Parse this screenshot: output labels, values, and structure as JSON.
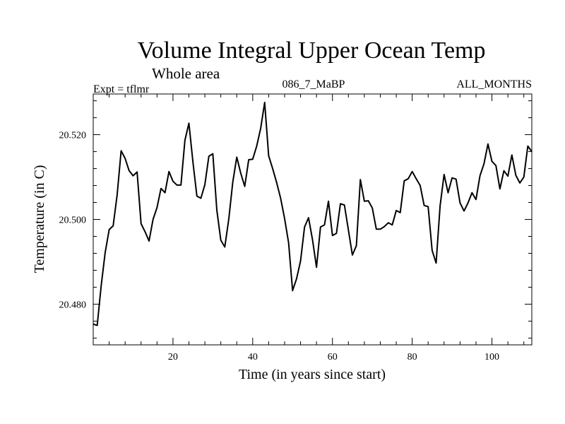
{
  "chart_data": {
    "type": "line",
    "title": "Volume Integral Upper Ocean Temp",
    "subtitle": "Whole area",
    "expt_label": "Expt = tflmr",
    "run_label": "086_7_MaBP",
    "months_label": "ALL_MONTHS",
    "xlabel": "Time (in years since start)",
    "ylabel": "Temperature (in C)",
    "xlim": [
      0,
      110
    ],
    "ylim": [
      0.4704,
      0.5296
    ],
    "ylim_display": [
      "20.4704",
      "20.5296"
    ],
    "y_offset": 20,
    "x_major_ticks": [
      20,
      40,
      60,
      80,
      100
    ],
    "x_major_labels": [
      "20",
      "40",
      "60",
      "80",
      "100"
    ],
    "x_minor_step": 4,
    "y_major_ticks": [
      0.48,
      0.5,
      0.52
    ],
    "y_major_labels": [
      "20.480",
      "20.500",
      "20.520"
    ],
    "y_minor_step": 0.004,
    "series": [
      {
        "name": "Temperature",
        "x": [
          0,
          1,
          2,
          3,
          4,
          5,
          6,
          7,
          8,
          9,
          10,
          11,
          12,
          13,
          14,
          15,
          16,
          17,
          18,
          19,
          20,
          21,
          22,
          23,
          24,
          25,
          26,
          27,
          28,
          29,
          30,
          31,
          32,
          33,
          34,
          35,
          36,
          37,
          38,
          39,
          40,
          41,
          42,
          43,
          44,
          45,
          46,
          47,
          48,
          49,
          50,
          51,
          52,
          53,
          54,
          55,
          56,
          57,
          58,
          59,
          60,
          61,
          62,
          63,
          64,
          65,
          66,
          67,
          68,
          69,
          70,
          71,
          72,
          73,
          74,
          75,
          76,
          77,
          78,
          79,
          80,
          81,
          82,
          83,
          84,
          85,
          86,
          87,
          88,
          89,
          90,
          91,
          92,
          93,
          94,
          95,
          96,
          97,
          98,
          99,
          100,
          101,
          102,
          103,
          104,
          105,
          106,
          107,
          108,
          109,
          110
        ],
        "y": [
          0.4753,
          0.475,
          0.4844,
          0.4922,
          0.4976,
          0.4985,
          0.5058,
          0.5162,
          0.5144,
          0.5115,
          0.5103,
          0.5112,
          0.499,
          0.4971,
          0.4949,
          0.5,
          0.5028,
          0.5073,
          0.5063,
          0.5113,
          0.509,
          0.5081,
          0.5081,
          0.5187,
          0.5227,
          0.5136,
          0.5055,
          0.505,
          0.5082,
          0.5149,
          0.5155,
          0.5022,
          0.4951,
          0.4935,
          0.5001,
          0.5088,
          0.5147,
          0.5109,
          0.5078,
          0.5141,
          0.5142,
          0.5173,
          0.5215,
          0.5276,
          0.515,
          0.512,
          0.5087,
          0.505,
          0.5002,
          0.4945,
          0.4832,
          0.486,
          0.4902,
          0.4982,
          0.5004,
          0.4952,
          0.4887,
          0.4982,
          0.4987,
          0.5043,
          0.4962,
          0.4967,
          0.5037,
          0.5034,
          0.4975,
          0.4916,
          0.4938,
          0.5094,
          0.5043,
          0.5044,
          0.5027,
          0.4977,
          0.4977,
          0.4983,
          0.4992,
          0.4987,
          0.5021,
          0.5016,
          0.5091,
          0.5096,
          0.5113,
          0.5096,
          0.508,
          0.5033,
          0.503,
          0.4927,
          0.4897,
          0.5032,
          0.5106,
          0.5063,
          0.5098,
          0.5095,
          0.5039,
          0.502,
          0.5039,
          0.5063,
          0.5047,
          0.5103,
          0.5131,
          0.5178,
          0.5137,
          0.5127,
          0.5072,
          0.5115,
          0.5102,
          0.5152,
          0.5104,
          0.5086,
          0.51,
          0.5173,
          0.516
        ]
      }
    ]
  }
}
